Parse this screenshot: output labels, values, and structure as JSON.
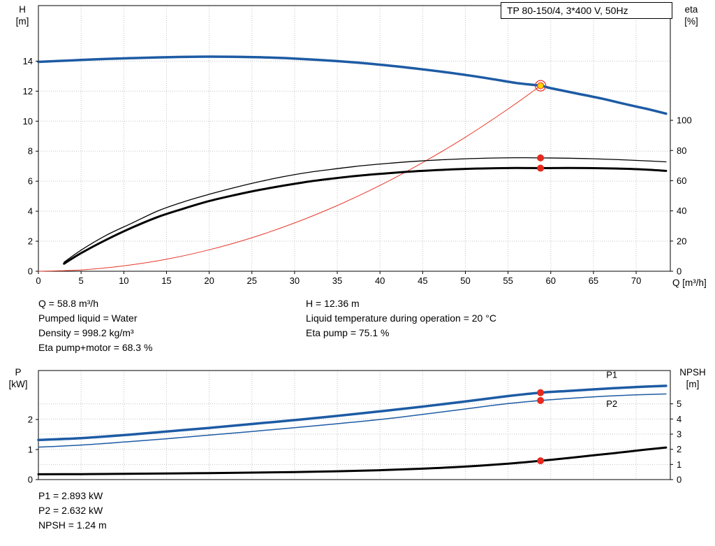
{
  "colors": {
    "blue": "#1d5ba4",
    "red": "#e8291f",
    "yellow": "#ffd400",
    "black": "#000000",
    "grid": "#c3c3c3",
    "frame": "#000000"
  },
  "annotations": {
    "left": [
      "Q = 58.8 m³/h",
      "Pumped liquid = Water",
      "Density = 998.2 kg/m³",
      "Eta pump+motor = 68.3 %"
    ],
    "right": [
      "H = 12.36 m",
      "Liquid temperature during operation = 20 °C",
      "Eta pump = 75.1 %"
    ],
    "bottom": [
      "P1 = 2.893 kW",
      "P2 = 2.632 kW",
      "NPSH = 1.24 m"
    ]
  },
  "chart_data": [
    {
      "type": "line",
      "title": "TP 80-150/4, 3*400 V, 50Hz",
      "x_axis": {
        "name": "Q",
        "unit": "[m³/h]",
        "range": [
          0,
          74
        ],
        "ticks": [
          0,
          5,
          10,
          15,
          20,
          25,
          30,
          35,
          40,
          45,
          50,
          55,
          60,
          65,
          70
        ],
        "show_labels": true
      },
      "y_left": {
        "name": "H",
        "unit": "[m]",
        "range": [
          0,
          17.7
        ],
        "ticks": [
          0,
          2,
          4,
          6,
          8,
          10,
          12,
          14
        ]
      },
      "y_right": {
        "name": "eta",
        "unit": "[%]",
        "range": [
          0,
          176
        ],
        "ticks": [
          0,
          20,
          40,
          60,
          80,
          100
        ]
      },
      "grid_from": "left",
      "series": [
        {
          "name": "head-curve",
          "axis": "left",
          "color": "#1d5ba4",
          "width": 3.5,
          "points": [
            [
              0,
              13.95
            ],
            [
              2,
              14.0
            ],
            [
              5,
              14.08
            ],
            [
              8,
              14.15
            ],
            [
              11,
              14.2
            ],
            [
              14,
              14.25
            ],
            [
              17,
              14.28
            ],
            [
              20,
              14.3
            ],
            [
              23,
              14.29
            ],
            [
              26,
              14.26
            ],
            [
              29,
              14.2
            ],
            [
              32,
              14.11
            ],
            [
              35,
              14.0
            ],
            [
              38,
              13.87
            ],
            [
              41,
              13.71
            ],
            [
              44,
              13.52
            ],
            [
              47,
              13.31
            ],
            [
              50,
              13.08
            ],
            [
              53,
              12.82
            ],
            [
              56,
              12.54
            ],
            [
              58.8,
              12.36
            ],
            [
              60,
              12.2
            ],
            [
              63,
              11.85
            ],
            [
              66,
              11.5
            ],
            [
              69,
              11.1
            ],
            [
              71,
              10.85
            ],
            [
              73.5,
              10.5
            ]
          ]
        },
        {
          "name": "system-curve",
          "axis": "left",
          "color": "#e8392b",
          "width": 1,
          "points": [
            [
              0,
              0
            ],
            [
              5,
              0.09
            ],
            [
              10,
              0.36
            ],
            [
              15,
              0.8
            ],
            [
              20,
              1.43
            ],
            [
              25,
              2.23
            ],
            [
              30,
              3.22
            ],
            [
              35,
              4.38
            ],
            [
              40,
              5.72
            ],
            [
              45,
              7.24
            ],
            [
              50,
              8.93
            ],
            [
              55,
              10.81
            ],
            [
              58.8,
              12.36
            ]
          ]
        },
        {
          "name": "eta-pump-curve",
          "axis": "right",
          "color": "#000000",
          "width": 1.3,
          "points": [
            [
              3,
              6
            ],
            [
              5,
              14
            ],
            [
              8,
              24
            ],
            [
              11,
              32
            ],
            [
              14,
              40
            ],
            [
              17,
              46
            ],
            [
              20,
              51
            ],
            [
              23,
              55.5
            ],
            [
              26,
              59.5
            ],
            [
              29,
              63
            ],
            [
              32,
              65.8
            ],
            [
              35,
              68
            ],
            [
              38,
              70
            ],
            [
              41,
              71.5
            ],
            [
              44,
              72.8
            ],
            [
              47,
              73.8
            ],
            [
              50,
              74.5
            ],
            [
              53,
              75
            ],
            [
              56,
              75.2
            ],
            [
              58.8,
              75.1
            ],
            [
              62,
              74.9
            ],
            [
              65,
              74.5
            ],
            [
              68,
              73.9
            ],
            [
              71,
              73.2
            ],
            [
              73.5,
              72.5
            ]
          ]
        },
        {
          "name": "eta-pump-motor-curve",
          "axis": "right",
          "color": "#000000",
          "width": 3,
          "points": [
            [
              3,
              5
            ],
            [
              5,
              12
            ],
            [
              8,
              21
            ],
            [
              11,
              29
            ],
            [
              14,
              36
            ],
            [
              17,
              41.5
            ],
            [
              20,
              46.5
            ],
            [
              23,
              50.5
            ],
            [
              26,
              54
            ],
            [
              29,
              57
            ],
            [
              32,
              59.7
            ],
            [
              35,
              61.8
            ],
            [
              38,
              63.6
            ],
            [
              41,
              65
            ],
            [
              44,
              66.2
            ],
            [
              47,
              67.1
            ],
            [
              50,
              67.8
            ],
            [
              53,
              68.2
            ],
            [
              56,
              68.4
            ],
            [
              58.8,
              68.3
            ],
            [
              62,
              68.4
            ],
            [
              65,
              68.3
            ],
            [
              68,
              68
            ],
            [
              71,
              67.4
            ],
            [
              73.5,
              66.5
            ]
          ]
        }
      ],
      "markers": [
        {
          "q": 58.8,
          "v": 12.36,
          "axis": "left",
          "style": "duty"
        },
        {
          "q": 58.8,
          "v": 75.1,
          "axis": "right",
          "style": "dot"
        },
        {
          "q": 58.8,
          "v": 68.3,
          "axis": "right",
          "style": "dot"
        }
      ],
      "curve_labels": []
    },
    {
      "type": "line",
      "title": "",
      "x_axis": {
        "name": "Q",
        "unit": "[m³/h]",
        "range": [
          0,
          74
        ],
        "ticks": [
          0,
          5,
          10,
          15,
          20,
          25,
          30,
          35,
          40,
          45,
          50,
          55,
          60,
          65,
          70
        ],
        "show_labels": false
      },
      "y_left": {
        "name": "P",
        "unit": "[kW]",
        "range": [
          0,
          3.63
        ],
        "ticks": [
          0,
          1,
          2
        ]
      },
      "y_right": {
        "name": "NPSH",
        "unit": "[m]",
        "range": [
          0,
          7.2
        ],
        "ticks": [
          0,
          1,
          2,
          3,
          4,
          5
        ]
      },
      "grid_from": "right",
      "series": [
        {
          "name": "p1-curve",
          "axis": "left",
          "color": "#1d5ba4",
          "width": 3.5,
          "points": [
            [
              0,
              1.32
            ],
            [
              5,
              1.38
            ],
            [
              10,
              1.48
            ],
            [
              15,
              1.6
            ],
            [
              20,
              1.72
            ],
            [
              25,
              1.85
            ],
            [
              30,
              1.98
            ],
            [
              35,
              2.12
            ],
            [
              40,
              2.27
            ],
            [
              45,
              2.43
            ],
            [
              50,
              2.6
            ],
            [
              55,
              2.78
            ],
            [
              58.8,
              2.893
            ],
            [
              62,
              2.95
            ],
            [
              66,
              3.02
            ],
            [
              70,
              3.08
            ],
            [
              73.5,
              3.12
            ]
          ]
        },
        {
          "name": "p2-curve",
          "axis": "left",
          "color": "#1d5ba4",
          "width": 1.5,
          "points": [
            [
              0,
              1.08
            ],
            [
              5,
              1.15
            ],
            [
              10,
              1.25
            ],
            [
              15,
              1.36
            ],
            [
              20,
              1.48
            ],
            [
              25,
              1.6
            ],
            [
              30,
              1.73
            ],
            [
              35,
              1.86
            ],
            [
              40,
              2.0
            ],
            [
              45,
              2.17
            ],
            [
              50,
              2.35
            ],
            [
              55,
              2.53
            ],
            [
              58.8,
              2.632
            ],
            [
              62,
              2.7
            ],
            [
              66,
              2.77
            ],
            [
              70,
              2.82
            ],
            [
              73.5,
              2.85
            ]
          ]
        },
        {
          "name": "npsh-curve",
          "axis": "right",
          "color": "#000000",
          "width": 3,
          "points": [
            [
              0,
              0.35
            ],
            [
              5,
              0.36
            ],
            [
              10,
              0.38
            ],
            [
              15,
              0.4
            ],
            [
              20,
              0.43
            ],
            [
              25,
              0.46
            ],
            [
              30,
              0.5
            ],
            [
              35,
              0.55
            ],
            [
              40,
              0.62
            ],
            [
              45,
              0.72
            ],
            [
              50,
              0.86
            ],
            [
              55,
              1.05
            ],
            [
              58.8,
              1.24
            ],
            [
              62,
              1.42
            ],
            [
              65,
              1.6
            ],
            [
              68,
              1.78
            ],
            [
              71,
              1.97
            ],
            [
              73.5,
              2.12
            ]
          ]
        }
      ],
      "markers": [
        {
          "q": 58.8,
          "v": 2.893,
          "axis": "left",
          "style": "dot"
        },
        {
          "q": 58.8,
          "v": 2.632,
          "axis": "left",
          "style": "dot"
        },
        {
          "q": 58.8,
          "v": 1.24,
          "axis": "right",
          "style": "dot"
        }
      ],
      "curve_labels": [
        {
          "text": "P1",
          "q": 66.5,
          "v": 3.38,
          "axis": "left",
          "color": "#1d5ba4"
        },
        {
          "text": "P2",
          "q": 66.5,
          "v": 2.42,
          "axis": "left",
          "color": "#1d5ba4"
        }
      ]
    }
  ]
}
